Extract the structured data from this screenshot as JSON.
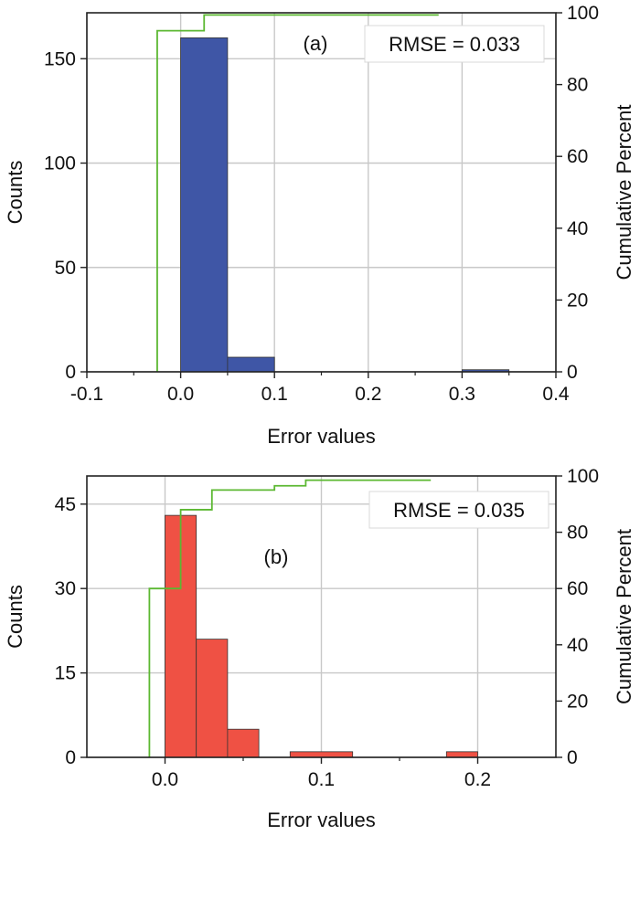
{
  "chart_data": [
    {
      "type": "bar",
      "panel_label": "(a)",
      "annotation": "RMSE = 0.033",
      "xlabel": "Error values",
      "ylabel": "Counts",
      "y2label": "Cumulative Percent",
      "xlim": [
        -0.1,
        0.4
      ],
      "ylim": [
        0,
        172
      ],
      "y2lim": [
        0,
        100
      ],
      "xticks": [
        -0.1,
        0.0,
        0.1,
        0.2,
        0.3,
        0.4
      ],
      "xtick_labels": [
        "-0.1",
        "0.0",
        "0.1",
        "0.2",
        "0.3",
        "0.4"
      ],
      "yticks": [
        0,
        50,
        100,
        150
      ],
      "ytick_labels": [
        "0",
        "50",
        "100",
        "150"
      ],
      "y2ticks": [
        0,
        20,
        40,
        60,
        80,
        100
      ],
      "y2tick_labels": [
        "0",
        "20",
        "40",
        "60",
        "80",
        "100"
      ],
      "bar_color": "#3f56a6",
      "bins": [
        {
          "x0": 0.0,
          "x1": 0.05,
          "count": 160
        },
        {
          "x0": 0.05,
          "x1": 0.1,
          "count": 7
        },
        {
          "x0": 0.3,
          "x1": 0.35,
          "count": 1
        }
      ],
      "cumulative_color": "#5cb832",
      "cumulative": [
        {
          "x": -0.025,
          "y": 0
        },
        {
          "x": -0.025,
          "y": 95
        },
        {
          "x": 0.025,
          "y": 95
        },
        {
          "x": 0.025,
          "y": 99.4
        },
        {
          "x": 0.275,
          "y": 99.4
        }
      ]
    },
    {
      "type": "bar",
      "panel_label": "(b)",
      "annotation": "RMSE = 0.035",
      "xlabel": "Error values",
      "ylabel": "Counts",
      "y2label": "Cumulative Percent",
      "xlim": [
        -0.05,
        0.25
      ],
      "ylim": [
        0,
        50
      ],
      "y2lim": [
        0,
        100
      ],
      "xticks": [
        0.0,
        0.1,
        0.2
      ],
      "xtick_labels": [
        "0.0",
        "0.1",
        "0.2"
      ],
      "yticks": [
        0,
        15,
        30,
        45
      ],
      "ytick_labels": [
        "0",
        "15",
        "30",
        "45"
      ],
      "y2ticks": [
        0,
        20,
        40,
        60,
        80,
        100
      ],
      "y2tick_labels": [
        "0",
        "20",
        "40",
        "60",
        "80",
        "100"
      ],
      "bar_color": "#ef5144",
      "bins": [
        {
          "x0": 0.0,
          "x1": 0.02,
          "count": 43
        },
        {
          "x0": 0.02,
          "x1": 0.04,
          "count": 21
        },
        {
          "x0": 0.04,
          "x1": 0.06,
          "count": 5
        },
        {
          "x0": 0.08,
          "x1": 0.12,
          "count": 1
        },
        {
          "x0": 0.18,
          "x1": 0.2,
          "count": 1
        }
      ],
      "cumulative_color": "#5cb832",
      "cumulative": [
        {
          "x": -0.01,
          "y": 0
        },
        {
          "x": -0.01,
          "y": 60
        },
        {
          "x": 0.01,
          "y": 60
        },
        {
          "x": 0.01,
          "y": 88
        },
        {
          "x": 0.03,
          "y": 88
        },
        {
          "x": 0.03,
          "y": 95
        },
        {
          "x": 0.07,
          "y": 95
        },
        {
          "x": 0.07,
          "y": 96.5
        },
        {
          "x": 0.09,
          "y": 96.5
        },
        {
          "x": 0.09,
          "y": 98.5
        },
        {
          "x": 0.17,
          "y": 98.5
        }
      ]
    }
  ]
}
